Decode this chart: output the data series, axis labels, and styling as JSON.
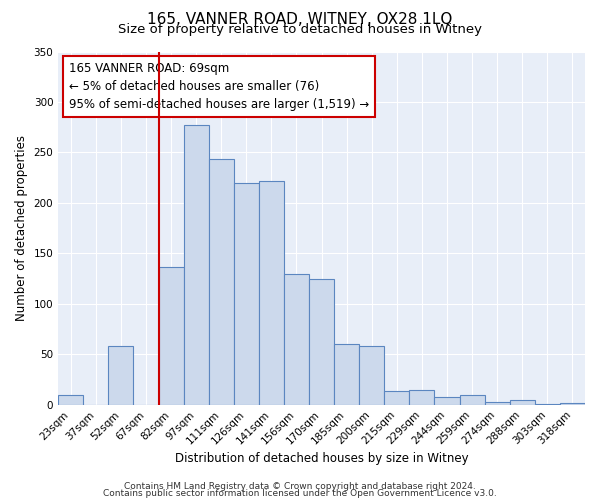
{
  "title": "165, VANNER ROAD, WITNEY, OX28 1LQ",
  "subtitle": "Size of property relative to detached houses in Witney",
  "xlabel": "Distribution of detached houses by size in Witney",
  "ylabel": "Number of detached properties",
  "categories": [
    "23sqm",
    "37sqm",
    "52sqm",
    "67sqm",
    "82sqm",
    "97sqm",
    "111sqm",
    "126sqm",
    "141sqm",
    "156sqm",
    "170sqm",
    "185sqm",
    "200sqm",
    "215sqm",
    "229sqm",
    "244sqm",
    "259sqm",
    "274sqm",
    "288sqm",
    "303sqm",
    "318sqm"
  ],
  "values": [
    10,
    0,
    58,
    0,
    136,
    277,
    243,
    220,
    222,
    130,
    125,
    60,
    58,
    14,
    15,
    8,
    10,
    3,
    5,
    1,
    2
  ],
  "bar_color": "#ccd9ec",
  "bar_edge_color": "#5b86c0",
  "vline_x_index": 4,
  "vline_color": "#cc0000",
  "annotation_text": "165 VANNER ROAD: 69sqm\n← 5% of detached houses are smaller (76)\n95% of semi-detached houses are larger (1,519) →",
  "annotation_box_facecolor": "#ffffff",
  "annotation_box_edgecolor": "#cc0000",
  "ylim": [
    0,
    350
  ],
  "yticks": [
    0,
    50,
    100,
    150,
    200,
    250,
    300,
    350
  ],
  "footer1": "Contains HM Land Registry data © Crown copyright and database right 2024.",
  "footer2": "Contains public sector information licensed under the Open Government Licence v3.0.",
  "bg_color": "#ffffff",
  "plot_bg_color": "#e8eef8",
  "title_fontsize": 11,
  "subtitle_fontsize": 9.5,
  "axis_label_fontsize": 8.5,
  "tick_fontsize": 7.5,
  "annotation_fontsize": 8.5,
  "footer_fontsize": 6.5
}
